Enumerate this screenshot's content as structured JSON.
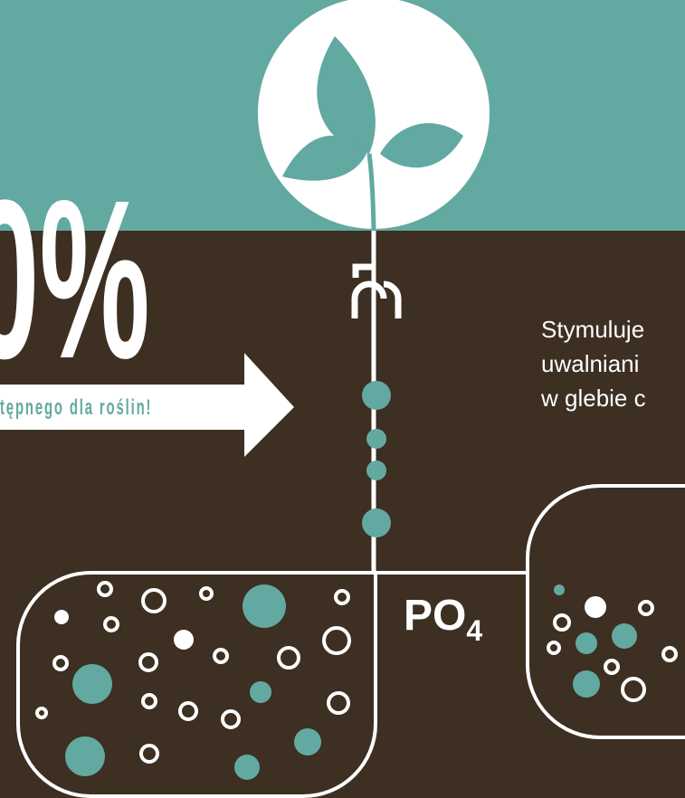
{
  "headline": {
    "percent": "0%",
    "arrow_text": "tępnego dla roślin!"
  },
  "description": {
    "lines": [
      "Stymuluje",
      "uwalniani",
      "w glebie c"
    ]
  },
  "formula": {
    "base": "PO",
    "subscript": "4"
  }
}
